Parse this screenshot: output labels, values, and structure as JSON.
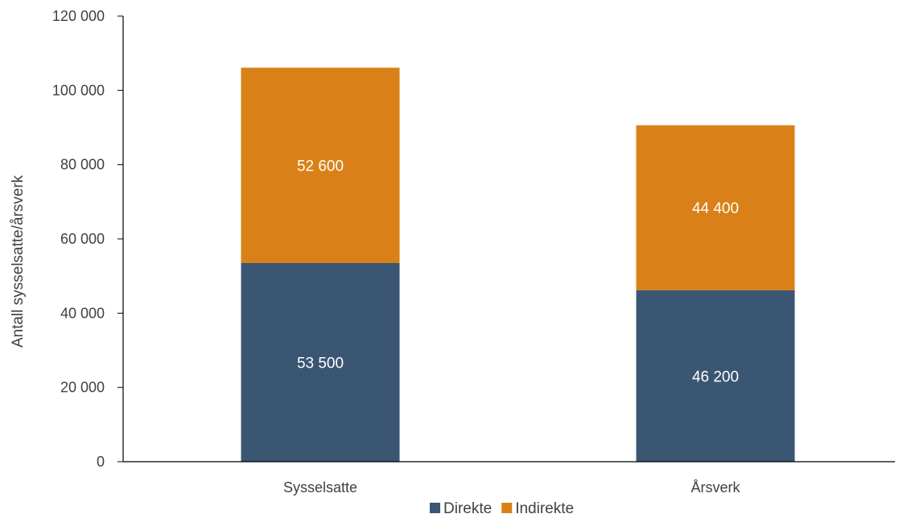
{
  "chart_data": {
    "type": "bar",
    "stacked": true,
    "categories": [
      "Sysselsatte",
      "Årsverk"
    ],
    "series": [
      {
        "name": "Direkte",
        "values": [
          53500,
          46200
        ],
        "labels": [
          "53 500",
          "46 200"
        ],
        "color": "#3b5672"
      },
      {
        "name": "Indirekte",
        "values": [
          52600,
          44400
        ],
        "labels": [
          "52 600",
          "44 400"
        ],
        "color": "#d98118"
      }
    ],
    "title": "",
    "xlabel": "",
    "ylabel": "Antall sysselsatte/årsverk",
    "ylim": [
      0,
      120000
    ],
    "yticks": [
      0,
      20000,
      40000,
      60000,
      80000,
      100000,
      120000
    ],
    "ytick_labels": [
      "0",
      "20 000",
      "40 000",
      "60 000",
      "80 000",
      "100 000",
      "120 000"
    ],
    "grid": false,
    "legend_position": "bottom-center",
    "axis_color": "#000000"
  }
}
